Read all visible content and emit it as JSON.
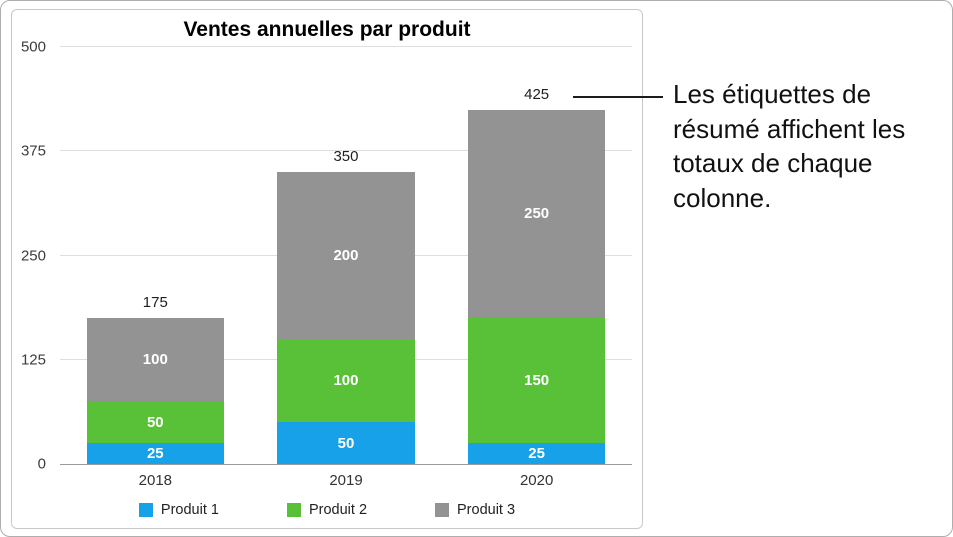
{
  "chart_data": {
    "type": "bar",
    "stacked": true,
    "title": "Ventes annuelles par produit",
    "categories": [
      "2018",
      "2019",
      "2020"
    ],
    "series": [
      {
        "name": "Produit 1",
        "color": "#16a1e9",
        "values": [
          25,
          50,
          25
        ]
      },
      {
        "name": "Produit 2",
        "color": "#59c138",
        "values": [
          50,
          100,
          150
        ]
      },
      {
        "name": "Produit 3",
        "color": "#939393",
        "values": [
          100,
          200,
          250
        ]
      }
    ],
    "totals": [
      175,
      350,
      425
    ],
    "y_ticks": [
      0,
      125,
      250,
      375,
      500
    ],
    "ylim": [
      0,
      500
    ],
    "grid": true,
    "legend_position": "bottom"
  },
  "callout": {
    "text": "Les étiquettes de résumé affichent les totaux de chaque colonne."
  }
}
